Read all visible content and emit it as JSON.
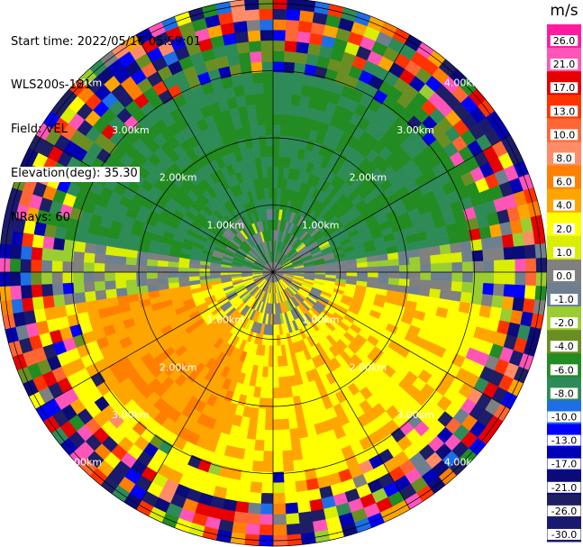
{
  "header": {
    "start_time": "Start time: 2022/05/16 05:59:01",
    "device": "WLS200s-181",
    "field": "Field: VEL",
    "elevation": "Elevation(deg): 35.30",
    "nrays": "NRays: 60"
  },
  "chart_data": {
    "type": "heatmap",
    "projection": "polar (PPI scan)",
    "range_rings_km": [
      "1.00km",
      "2.00km",
      "3.00km",
      "4.00km"
    ],
    "n_rays": 60,
    "colorbar": {
      "unit": "m/s",
      "ticks": [
        "26.0",
        "21.0",
        "17.0",
        "13.0",
        "10.0",
        "8.0",
        "6.0",
        "4.0",
        "2.0",
        "1.0",
        "0.0",
        "-1.0",
        "-2.0",
        "-4.0",
        "-6.0",
        "-8.0",
        "-10.0",
        "-13.0",
        "-17.0",
        "-21.0",
        "-26.0",
        "-30.0"
      ],
      "colors": [
        "#ff1aa0",
        "#ff55b8",
        "#e60000",
        "#ff3300",
        "#ff6633",
        "#ff8c66",
        "#ff8000",
        "#ffa500",
        "#ffff00",
        "#d9ee00",
        "#808080",
        "#6e8090",
        "#9acd32",
        "#6b8e23",
        "#228b22",
        "#2e8b57",
        "#1e6ee6",
        "#0000ff",
        "#0000b4",
        "#0a0a78",
        "#1e1e64",
        "#191970"
      ],
      "range": [
        -30,
        26
      ]
    },
    "velocity_pattern": {
      "upper_half": "mostly negative, -4 to -8 m/s (greens)",
      "lower_half": "mostly positive, 2 to 6 m/s (yellow/orange)",
      "outer_ring": "noisy, full range of colors"
    }
  }
}
